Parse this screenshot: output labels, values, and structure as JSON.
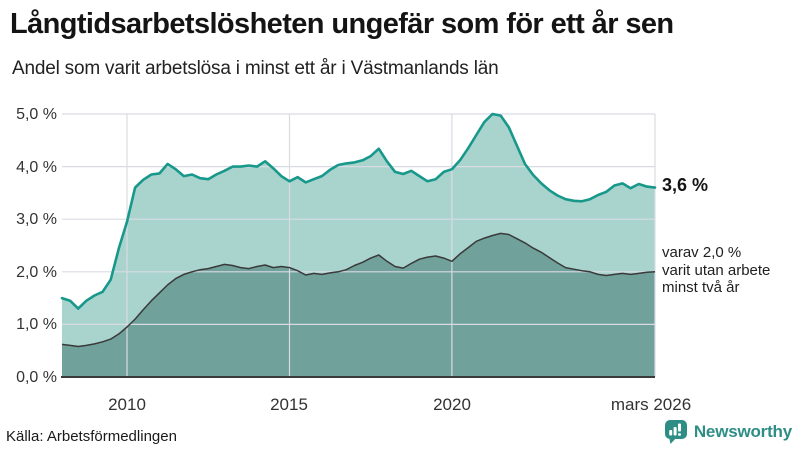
{
  "header": {
    "title": "Långtidsarbetslösheten ungefär som för ett år sen",
    "subtitle": "Andel som varit arbetslösa i minst ett år i Västmanlands län"
  },
  "annotations": {
    "end_value_label": "3,6 %",
    "end_note": "varav 2,0 %\nvarit utan arbete\nminst två år"
  },
  "footer": {
    "source": "Källa: Arbetsförmedlingen",
    "brand_name": "Newsworthy"
  },
  "colors": {
    "line_1yr": "#18988b",
    "fill_1yr": "#a9d4cd",
    "line_2yr": "#3a3a3a",
    "fill_2yr": "#70a19b",
    "grid": "#d9dbe3",
    "baseline": "#3a3a3a",
    "brand_teal": "#2e8e85"
  },
  "chart_data": {
    "type": "area",
    "title": "Långtidsarbetslösheten ungefär som för ett år sen",
    "subtitle": "Andel som varit arbetslösa i minst ett år i Västmanlands län",
    "xlabel": "",
    "ylabel": "",
    "x_range": [
      2008,
      2026.25
    ],
    "y_range": [
      0,
      5
    ],
    "grid": true,
    "legend_position": "none",
    "y_tick_labels": [
      "5,0 %",
      "4,0 %",
      "3,0 %",
      "2,0 %",
      "1,0 %",
      "0,0 %"
    ],
    "y_tick_values": [
      5,
      4,
      3,
      2,
      1,
      0
    ],
    "y_grid_values": [
      1,
      2,
      3,
      4,
      5
    ],
    "x_tick_labels": [
      "2010",
      "2015",
      "2020",
      "mars 2026"
    ],
    "x_tick_values": [
      2010,
      2015,
      2020,
      2026.25
    ],
    "x_grid_values": [
      2010,
      2015,
      2020,
      2026.25
    ],
    "x": [
      2008,
      2008.25,
      2008.5,
      2008.75,
      2009,
      2009.25,
      2009.5,
      2009.75,
      2010,
      2010.25,
      2010.5,
      2010.75,
      2011,
      2011.25,
      2011.5,
      2011.75,
      2012,
      2012.25,
      2012.5,
      2012.75,
      2013,
      2013.25,
      2013.5,
      2013.75,
      2014,
      2014.25,
      2014.5,
      2014.75,
      2015,
      2015.25,
      2015.5,
      2015.75,
      2016,
      2016.25,
      2016.5,
      2016.75,
      2017,
      2017.25,
      2017.5,
      2017.75,
      2018,
      2018.25,
      2018.5,
      2018.75,
      2019,
      2019.25,
      2019.5,
      2019.75,
      2020,
      2020.25,
      2020.5,
      2020.75,
      2021,
      2021.25,
      2021.5,
      2021.75,
      2022,
      2022.25,
      2022.5,
      2022.75,
      2023,
      2023.25,
      2023.5,
      2023.75,
      2024,
      2024.25,
      2024.5,
      2024.75,
      2025,
      2025.25,
      2025.5,
      2025.75,
      2026,
      2026.25
    ],
    "series": [
      {
        "name": "Arbetslösa minst ett år",
        "end_label": "3,6 %",
        "values": [
          1.5,
          1.45,
          1.3,
          1.45,
          1.55,
          1.62,
          1.85,
          2.45,
          2.95,
          3.6,
          3.75,
          3.85,
          3.87,
          4.05,
          3.95,
          3.82,
          3.85,
          3.78,
          3.76,
          3.85,
          3.92,
          4.0,
          4.0,
          4.02,
          4.0,
          4.1,
          3.97,
          3.82,
          3.72,
          3.8,
          3.7,
          3.76,
          3.82,
          3.94,
          4.03,
          4.06,
          4.08,
          4.12,
          4.2,
          4.34,
          4.1,
          3.9,
          3.86,
          3.92,
          3.82,
          3.72,
          3.76,
          3.9,
          3.95,
          4.12,
          4.35,
          4.6,
          4.85,
          5.0,
          4.97,
          4.75,
          4.4,
          4.05,
          3.84,
          3.68,
          3.55,
          3.45,
          3.38,
          3.35,
          3.34,
          3.38,
          3.46,
          3.52,
          3.64,
          3.68,
          3.59,
          3.67,
          3.62,
          3.6
        ]
      },
      {
        "name": "Varav utan arbete minst två år",
        "end_label": "varav 2,0 % varit utan arbete minst två år",
        "values": [
          0.62,
          0.6,
          0.58,
          0.6,
          0.63,
          0.67,
          0.72,
          0.82,
          0.95,
          1.1,
          1.28,
          1.45,
          1.6,
          1.75,
          1.87,
          1.95,
          2.0,
          2.04,
          2.06,
          2.1,
          2.14,
          2.12,
          2.08,
          2.06,
          2.1,
          2.13,
          2.08,
          2.1,
          2.08,
          2.02,
          1.94,
          1.97,
          1.95,
          1.98,
          2.0,
          2.04,
          2.12,
          2.18,
          2.26,
          2.32,
          2.2,
          2.1,
          2.07,
          2.16,
          2.24,
          2.28,
          2.3,
          2.26,
          2.2,
          2.34,
          2.46,
          2.58,
          2.64,
          2.69,
          2.73,
          2.71,
          2.63,
          2.55,
          2.45,
          2.37,
          2.27,
          2.17,
          2.08,
          2.05,
          2.02,
          2.0,
          1.95,
          1.93,
          1.95,
          1.97,
          1.95,
          1.97,
          1.99,
          2.0
        ]
      }
    ]
  }
}
